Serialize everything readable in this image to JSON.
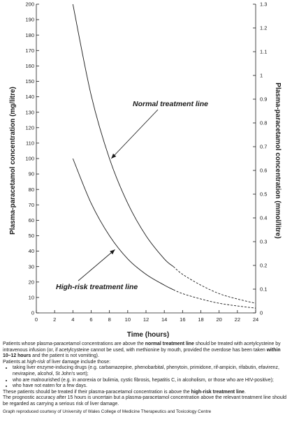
{
  "chart_data": {
    "type": "line",
    "xlabel": "Time (hours)",
    "ylabel": "Plasma-paracetamol concentration (mg/litre)",
    "ylabel_right": "Plasma-paracetamol concentration (mmol/litre)",
    "xlim": [
      0,
      24
    ],
    "ylim": [
      0,
      200
    ],
    "ylim_right": [
      0,
      1.3
    ],
    "x_ticks": [
      0,
      2,
      4,
      6,
      8,
      10,
      12,
      14,
      16,
      18,
      20,
      22,
      24
    ],
    "y_ticks": [
      0,
      10,
      20,
      30,
      40,
      50,
      60,
      70,
      80,
      90,
      100,
      110,
      120,
      130,
      140,
      150,
      160,
      170,
      180,
      190,
      200
    ],
    "y_ticks_right": [
      0,
      0.1,
      0.2,
      0.3,
      0.4,
      0.5,
      0.6,
      0.7,
      0.8,
      0.9,
      1,
      1.1,
      1.2,
      1.3
    ],
    "grid": false,
    "series": [
      {
        "name": "Normal treatment line",
        "x": [
          4,
          6,
          8,
          10,
          12,
          14,
          15,
          16,
          18,
          20,
          22,
          24
        ],
        "y": [
          200,
          141,
          100,
          71,
          50,
          35,
          30,
          25,
          18,
          12.5,
          9,
          6.25
        ],
        "solid_until_x": 15
      },
      {
        "name": "High-risk treatment line",
        "x": [
          4,
          6,
          8,
          10,
          12,
          14,
          15,
          16,
          18,
          20,
          22,
          24
        ],
        "y": [
          100,
          71,
          50,
          35,
          25,
          18,
          15,
          12.5,
          9,
          6.25,
          4.5,
          3.1
        ],
        "solid_until_x": 15
      }
    ],
    "annotations": {
      "normal": "Normal treatment line",
      "high_risk": "High-risk treatment line"
    }
  },
  "notes": {
    "p1_a": "Patients whose plasma-paracetamol concentrations are above the ",
    "p1_bold": "normal treatment line",
    "p1_b": " should be treated with acetylcysteine by intravenous infusion (or, if acetylcysteine cannot be used, with methionine by mouth, provided the overdose has been taken ",
    "p1_bold2": "within 10–12 hours",
    "p1_c": " and the patient is not vomiting).",
    "p2_a": "Patients at ",
    "p2_italic": "high-risk",
    "p2_b": " of liver damage include those:",
    "bullets": [
      "taking liver enzyme-inducing drugs (e.g. carbamazepine, phenobarbital, phenytoin, primidone, rif-ampicin, rifabutin, efavirenz, nevirapine, alcohol, St John’s wort);",
      "who are malnourished (e.g. in anorexia or bulimia, cystic fibrosis, hepatitis C, in alcoholism, or those who are HIV-positive);",
      "who have not eaten for a few days."
    ],
    "p3_a": "These patients should be treated if their plasma-paracetamol concentration is above the ",
    "p3_bold": "high-risk treatment line",
    "p3_b": ".",
    "p4": "The prognostic accuracy after 15 hours is uncertain but a plasma-paracetamol concentration above the relevant treatment line should be regarded as carrying a serious risk of liver damage.",
    "credit": "Graph reproduced courtesy of University of Wales College of Medicine Therapeutics and Toxicology Centre"
  }
}
